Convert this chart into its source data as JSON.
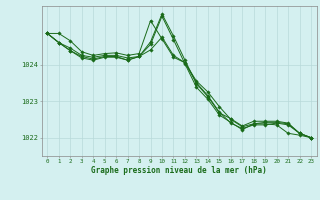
{
  "bg_color": "#d4f0f0",
  "grid_color": "#b8dada",
  "line_color": "#1a6b1a",
  "title": "Graphe pression niveau de la mer (hPa)",
  "xlim": [
    -0.5,
    23.5
  ],
  "ylim": [
    1021.5,
    1025.6
  ],
  "yticks": [
    1022,
    1023,
    1024
  ],
  "ytick_labels": [
    "1022",
    "1023",
    "1024"
  ],
  "xticks": [
    0,
    1,
    2,
    3,
    4,
    5,
    6,
    7,
    8,
    9,
    10,
    11,
    12,
    13,
    14,
    15,
    16,
    17,
    18,
    19,
    20,
    21,
    22,
    23
  ],
  "series": [
    [
      1024.85,
      1024.85,
      1024.65,
      1024.35,
      1024.25,
      1024.3,
      1024.32,
      1024.25,
      1024.3,
      1025.2,
      1024.7,
      1024.2,
      1024.05,
      1023.55,
      1023.25,
      1022.85,
      1022.5,
      1022.3,
      1022.38,
      1022.38,
      1022.35,
      1022.12,
      1022.07,
      1022.0
    ],
    [
      1024.85,
      1024.6,
      1024.45,
      1024.25,
      1024.2,
      1024.25,
      1024.25,
      1024.18,
      1024.22,
      1024.4,
      1024.75,
      1024.25,
      1024.05,
      1023.5,
      1023.15,
      1022.7,
      1022.4,
      1022.25,
      1022.35,
      1022.35,
      1022.4,
      1022.35,
      1022.12,
      1022.0
    ],
    [
      1024.85,
      1024.6,
      1024.38,
      1024.22,
      1024.15,
      1024.22,
      1024.22,
      1024.12,
      1024.22,
      1024.55,
      1025.32,
      1024.68,
      1024.02,
      1023.38,
      1023.05,
      1022.62,
      1022.42,
      1022.22,
      1022.38,
      1022.42,
      1022.42,
      1022.38,
      1022.12,
      1022.0
    ],
    [
      1024.85,
      1024.6,
      1024.38,
      1024.18,
      1024.12,
      1024.2,
      1024.2,
      1024.12,
      1024.22,
      1024.62,
      1025.38,
      1024.78,
      1024.12,
      1023.48,
      1023.12,
      1022.68,
      1022.52,
      1022.32,
      1022.45,
      1022.45,
      1022.45,
      1022.4,
      1022.12,
      1022.0
    ]
  ]
}
